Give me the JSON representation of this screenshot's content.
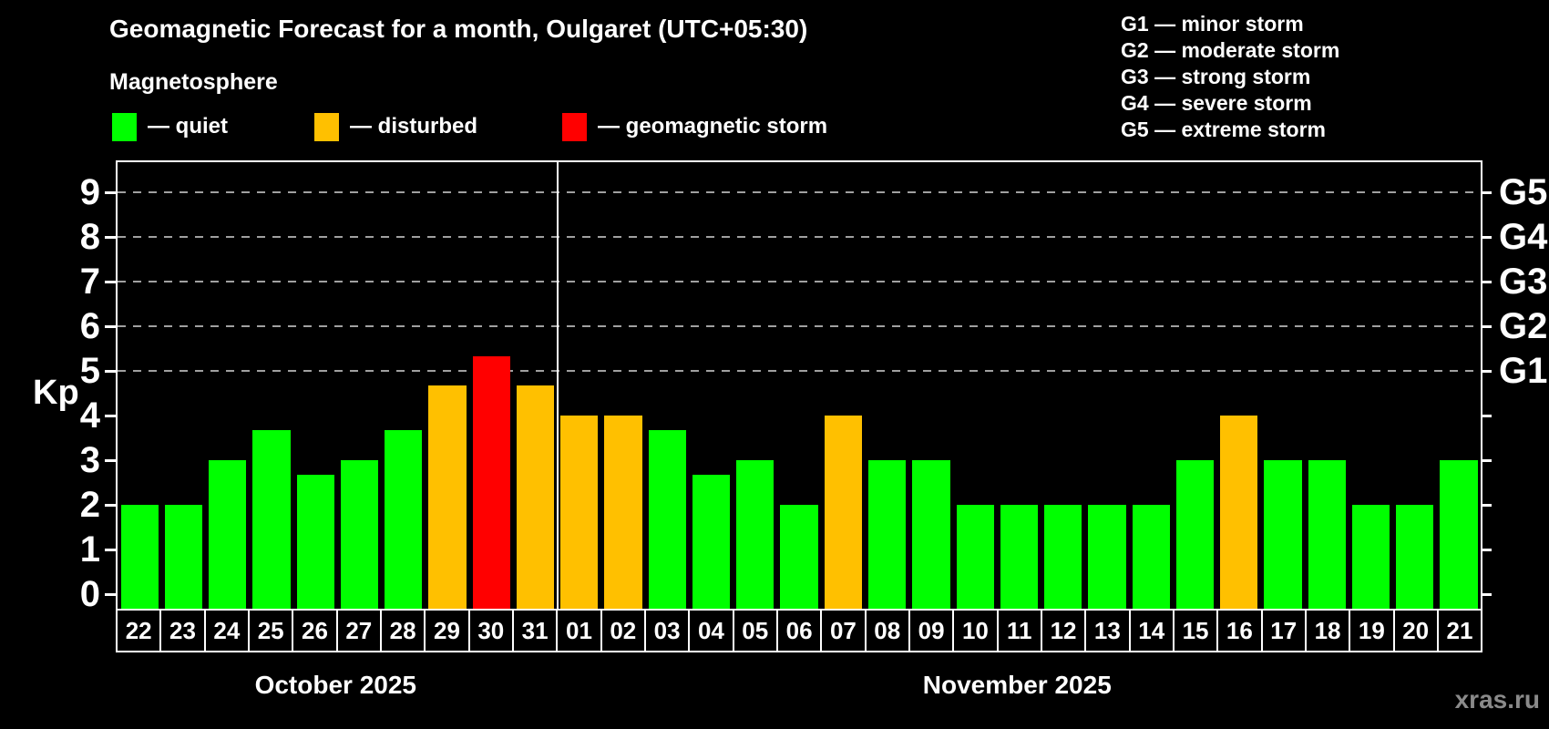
{
  "header": {
    "title": "Geomagnetic Forecast for a month, Oulgaret (UTC+05:30)",
    "subtitle": "Magnetosphere"
  },
  "legend": {
    "items": [
      {
        "key": "quiet",
        "label": "— quiet"
      },
      {
        "key": "disturbed",
        "label": "— disturbed"
      },
      {
        "key": "storm",
        "label": "— geomagnetic storm"
      }
    ]
  },
  "g_legend": {
    "items": [
      {
        "label": "G1 — minor storm"
      },
      {
        "label": "G2 — moderate storm"
      },
      {
        "label": "G3 — strong storm"
      },
      {
        "label": "G4 — severe storm"
      },
      {
        "label": "G5 — extreme storm"
      }
    ]
  },
  "colors": {
    "quiet": "#00ff00",
    "disturbed": "#ffc000",
    "storm": "#ff0000",
    "grid": "#a0a0a0",
    "watermark": "#8a8a8a",
    "background": "#000000",
    "foreground": "#ffffff"
  },
  "axis": {
    "y_label": "Kp",
    "y_ticks": [
      0,
      1,
      2,
      3,
      4,
      5,
      6,
      7,
      8,
      9
    ],
    "g_ticks": [
      {
        "label": "G1",
        "value": 5
      },
      {
        "label": "G2",
        "value": 6
      },
      {
        "label": "G3",
        "value": 7
      },
      {
        "label": "G4",
        "value": 8
      },
      {
        "label": "G5",
        "value": 9
      }
    ]
  },
  "watermark": "xras.ru",
  "chart_data": {
    "type": "bar",
    "title": "Geomagnetic Forecast for a month, Oulgaret (UTC+05:30)",
    "subtitle": "Magnetosphere",
    "ylabel": "Kp",
    "ylim": [
      0,
      9
    ],
    "gridlines_at": [
      5,
      6,
      7,
      8,
      9
    ],
    "legend_position": "top",
    "categories": [
      "22",
      "23",
      "24",
      "25",
      "26",
      "27",
      "28",
      "29",
      "30",
      "31",
      "01",
      "02",
      "03",
      "04",
      "05",
      "06",
      "07",
      "08",
      "09",
      "10",
      "11",
      "12",
      "13",
      "14",
      "15",
      "16",
      "17",
      "18",
      "19",
      "20",
      "21"
    ],
    "values": [
      2,
      2,
      3,
      3.67,
      2.67,
      3,
      3.67,
      4.67,
      5.33,
      4.67,
      4,
      4,
      3.67,
      2.67,
      3,
      2,
      4,
      3,
      3,
      2,
      2,
      2,
      2,
      2,
      3,
      4,
      3,
      3,
      2,
      2,
      3
    ],
    "status": [
      "quiet",
      "quiet",
      "quiet",
      "quiet",
      "quiet",
      "quiet",
      "quiet",
      "disturbed",
      "storm",
      "disturbed",
      "disturbed",
      "disturbed",
      "quiet",
      "quiet",
      "quiet",
      "quiet",
      "disturbed",
      "quiet",
      "quiet",
      "quiet",
      "quiet",
      "quiet",
      "quiet",
      "quiet",
      "quiet",
      "disturbed",
      "quiet",
      "quiet",
      "quiet",
      "quiet",
      "quiet"
    ],
    "months": [
      {
        "label": "October 2025",
        "days": 10
      },
      {
        "label": "November 2025",
        "days": 21
      }
    ]
  }
}
